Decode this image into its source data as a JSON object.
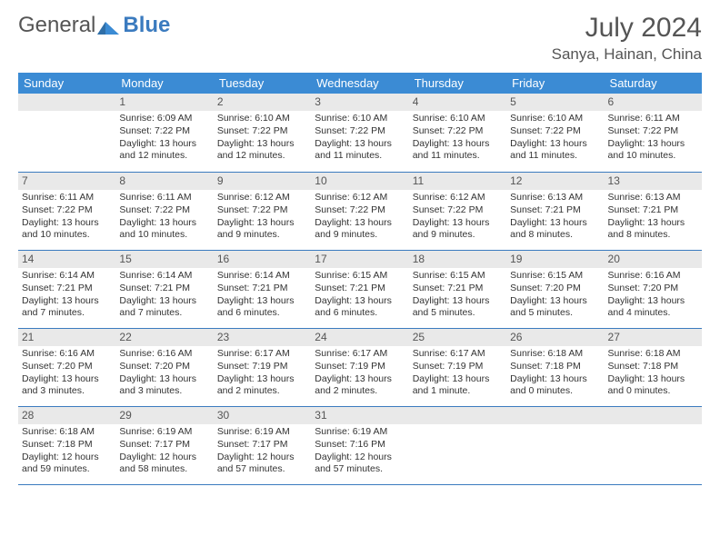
{
  "logo": {
    "text1": "General",
    "text2": "Blue"
  },
  "title": "July 2024",
  "location": "Sanya, Hainan, China",
  "colors": {
    "headerBg": "#3b8bd4",
    "headerText": "#ffffff",
    "dayBg": "#e9e9e9",
    "text": "#333333",
    "rule": "#3b7bbf",
    "logoGray": "#555555",
    "logoBlue": "#3b7bbf"
  },
  "dayNames": [
    "Sunday",
    "Monday",
    "Tuesday",
    "Wednesday",
    "Thursday",
    "Friday",
    "Saturday"
  ],
  "startOffset": 1,
  "daysInMonth": 31,
  "days": [
    {
      "n": 1,
      "sunrise": "6:09 AM",
      "sunset": "7:22 PM",
      "daylight": "13 hours and 12 minutes."
    },
    {
      "n": 2,
      "sunrise": "6:10 AM",
      "sunset": "7:22 PM",
      "daylight": "13 hours and 12 minutes."
    },
    {
      "n": 3,
      "sunrise": "6:10 AM",
      "sunset": "7:22 PM",
      "daylight": "13 hours and 11 minutes."
    },
    {
      "n": 4,
      "sunrise": "6:10 AM",
      "sunset": "7:22 PM",
      "daylight": "13 hours and 11 minutes."
    },
    {
      "n": 5,
      "sunrise": "6:10 AM",
      "sunset": "7:22 PM",
      "daylight": "13 hours and 11 minutes."
    },
    {
      "n": 6,
      "sunrise": "6:11 AM",
      "sunset": "7:22 PM",
      "daylight": "13 hours and 10 minutes."
    },
    {
      "n": 7,
      "sunrise": "6:11 AM",
      "sunset": "7:22 PM",
      "daylight": "13 hours and 10 minutes."
    },
    {
      "n": 8,
      "sunrise": "6:11 AM",
      "sunset": "7:22 PM",
      "daylight": "13 hours and 10 minutes."
    },
    {
      "n": 9,
      "sunrise": "6:12 AM",
      "sunset": "7:22 PM",
      "daylight": "13 hours and 9 minutes."
    },
    {
      "n": 10,
      "sunrise": "6:12 AM",
      "sunset": "7:22 PM",
      "daylight": "13 hours and 9 minutes."
    },
    {
      "n": 11,
      "sunrise": "6:12 AM",
      "sunset": "7:22 PM",
      "daylight": "13 hours and 9 minutes."
    },
    {
      "n": 12,
      "sunrise": "6:13 AM",
      "sunset": "7:21 PM",
      "daylight": "13 hours and 8 minutes."
    },
    {
      "n": 13,
      "sunrise": "6:13 AM",
      "sunset": "7:21 PM",
      "daylight": "13 hours and 8 minutes."
    },
    {
      "n": 14,
      "sunrise": "6:14 AM",
      "sunset": "7:21 PM",
      "daylight": "13 hours and 7 minutes."
    },
    {
      "n": 15,
      "sunrise": "6:14 AM",
      "sunset": "7:21 PM",
      "daylight": "13 hours and 7 minutes."
    },
    {
      "n": 16,
      "sunrise": "6:14 AM",
      "sunset": "7:21 PM",
      "daylight": "13 hours and 6 minutes."
    },
    {
      "n": 17,
      "sunrise": "6:15 AM",
      "sunset": "7:21 PM",
      "daylight": "13 hours and 6 minutes."
    },
    {
      "n": 18,
      "sunrise": "6:15 AM",
      "sunset": "7:21 PM",
      "daylight": "13 hours and 5 minutes."
    },
    {
      "n": 19,
      "sunrise": "6:15 AM",
      "sunset": "7:20 PM",
      "daylight": "13 hours and 5 minutes."
    },
    {
      "n": 20,
      "sunrise": "6:16 AM",
      "sunset": "7:20 PM",
      "daylight": "13 hours and 4 minutes."
    },
    {
      "n": 21,
      "sunrise": "6:16 AM",
      "sunset": "7:20 PM",
      "daylight": "13 hours and 3 minutes."
    },
    {
      "n": 22,
      "sunrise": "6:16 AM",
      "sunset": "7:20 PM",
      "daylight": "13 hours and 3 minutes."
    },
    {
      "n": 23,
      "sunrise": "6:17 AM",
      "sunset": "7:19 PM",
      "daylight": "13 hours and 2 minutes."
    },
    {
      "n": 24,
      "sunrise": "6:17 AM",
      "sunset": "7:19 PM",
      "daylight": "13 hours and 2 minutes."
    },
    {
      "n": 25,
      "sunrise": "6:17 AM",
      "sunset": "7:19 PM",
      "daylight": "13 hours and 1 minute."
    },
    {
      "n": 26,
      "sunrise": "6:18 AM",
      "sunset": "7:18 PM",
      "daylight": "13 hours and 0 minutes."
    },
    {
      "n": 27,
      "sunrise": "6:18 AM",
      "sunset": "7:18 PM",
      "daylight": "13 hours and 0 minutes."
    },
    {
      "n": 28,
      "sunrise": "6:18 AM",
      "sunset": "7:18 PM",
      "daylight": "12 hours and 59 minutes."
    },
    {
      "n": 29,
      "sunrise": "6:19 AM",
      "sunset": "7:17 PM",
      "daylight": "12 hours and 58 minutes."
    },
    {
      "n": 30,
      "sunrise": "6:19 AM",
      "sunset": "7:17 PM",
      "daylight": "12 hours and 57 minutes."
    },
    {
      "n": 31,
      "sunrise": "6:19 AM",
      "sunset": "7:16 PM",
      "daylight": "12 hours and 57 minutes."
    }
  ],
  "labels": {
    "sunrise": "Sunrise:",
    "sunset": "Sunset:",
    "daylight": "Daylight:"
  }
}
